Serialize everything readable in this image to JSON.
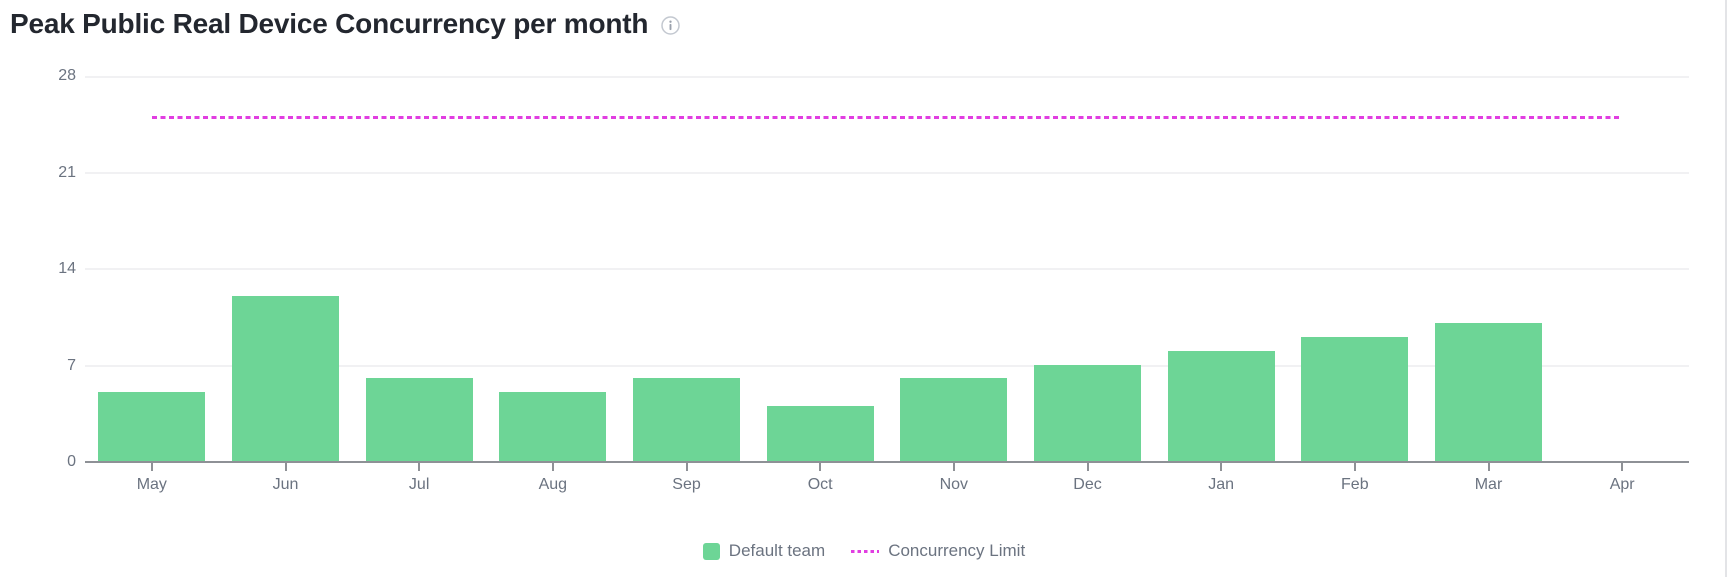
{
  "header": {
    "title": "Peak Public Real Device Concurrency per month"
  },
  "chart_data": {
    "type": "bar",
    "title": "Peak Public Real Device Concurrency per month",
    "categories": [
      "May",
      "Jun",
      "Jul",
      "Aug",
      "Sep",
      "Oct",
      "Nov",
      "Dec",
      "Jan",
      "Feb",
      "Mar",
      "Apr"
    ],
    "series": [
      {
        "name": "Default team",
        "type": "bar",
        "color": "#6dd596",
        "values": [
          5,
          12,
          6,
          5,
          6,
          4,
          6,
          7,
          8,
          9,
          10,
          0
        ]
      }
    ],
    "limit_line": {
      "name": "Concurrency Limit",
      "value": 25,
      "color": "#e13ee1",
      "style": "dashed"
    },
    "y_axis": {
      "ticks": [
        0,
        7,
        14,
        21,
        28
      ],
      "min": 0,
      "max": 28
    },
    "x_axis": {
      "tick_position": "category-center"
    },
    "grid": "horizontal",
    "legend_position": "bottom-center"
  },
  "legend": {
    "items": [
      {
        "label": "Default team",
        "swatch": "square",
        "color": "#6dd596"
      },
      {
        "label": "Concurrency Limit",
        "swatch": "dashed-line",
        "color": "#e13ee1"
      }
    ]
  },
  "colors": {
    "bar_green": "#6dd596",
    "limit_magenta": "#e13ee1",
    "axis_text": "#6b7380",
    "title_text": "#23272f",
    "gridline": "#f1f1f3",
    "axis_line": "#8e9196"
  }
}
